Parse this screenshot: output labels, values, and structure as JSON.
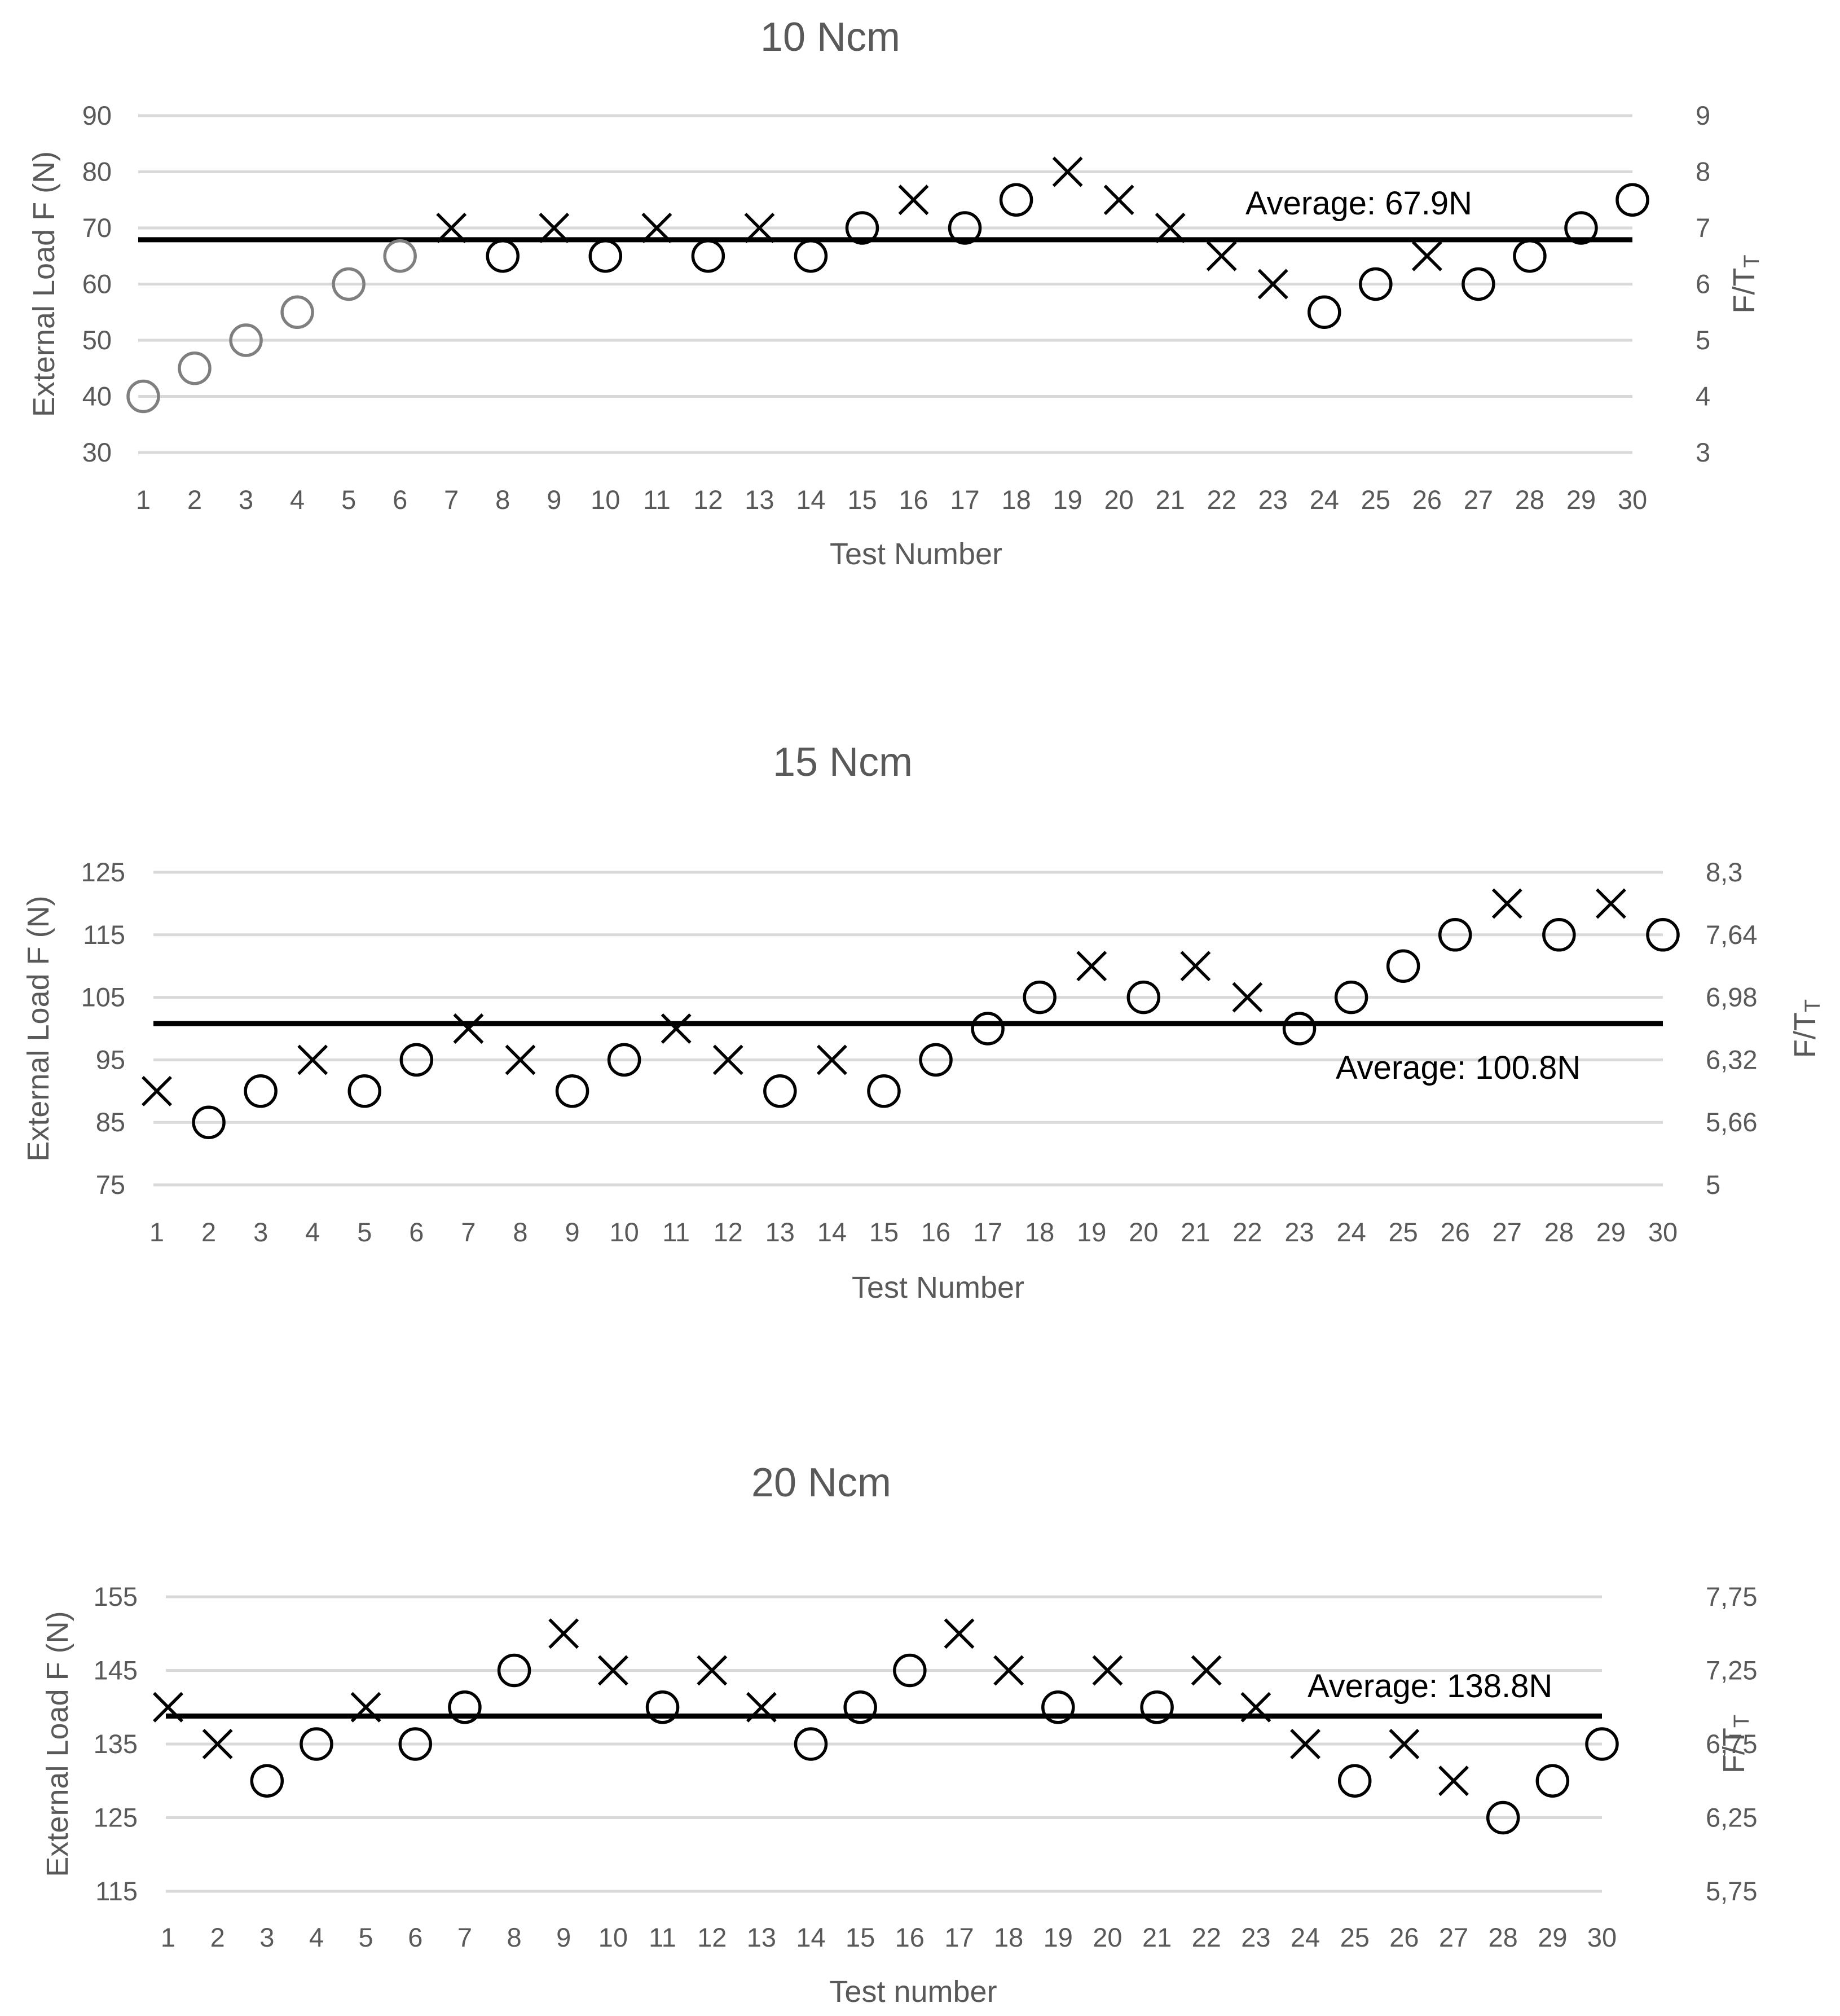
{
  "colors": {
    "marker": "#000000",
    "grey_marker": "#7f7f7f",
    "grid": "#d9d9d9",
    "text": "#595959"
  },
  "chart_data": [
    {
      "type": "scatter",
      "title": "10 Ncm",
      "xlabel": "Test Number",
      "ylabel": "External Load F (N)",
      "y2label": "F/Tt",
      "x": [
        1,
        2,
        3,
        4,
        5,
        6,
        7,
        8,
        9,
        10,
        11,
        12,
        13,
        14,
        15,
        16,
        17,
        18,
        19,
        20,
        21,
        22,
        23,
        24,
        25,
        26,
        27,
        28,
        29,
        30
      ],
      "values": [
        40,
        45,
        50,
        55,
        60,
        65,
        70,
        65,
        70,
        65,
        70,
        65,
        70,
        65,
        70,
        75,
        70,
        75,
        80,
        75,
        70,
        65,
        60,
        55,
        60,
        65,
        60,
        65,
        70,
        75
      ],
      "markers": [
        "o",
        "o",
        "o",
        "o",
        "o",
        "o",
        "x",
        "o",
        "x",
        "o",
        "x",
        "o",
        "x",
        "o",
        "o",
        "x",
        "o",
        "o",
        "x",
        "x",
        "x",
        "x",
        "x",
        "o",
        "o",
        "x",
        "o",
        "o",
        "o",
        "o"
      ],
      "grey_until": 6,
      "ylim": [
        30,
        90
      ],
      "yticks": [
        30,
        40,
        50,
        60,
        70,
        80,
        90
      ],
      "y2ticks": [
        "3",
        "4",
        "5",
        "6",
        "7",
        "8",
        "9"
      ],
      "average": 67.9,
      "average_label": "Average: 67.9N",
      "legend": "none",
      "grid": true
    },
    {
      "type": "scatter",
      "title": "15 Ncm",
      "xlabel": "Test Number",
      "ylabel": "External Load F (N)",
      "y2label": "F/Tt",
      "x": [
        1,
        2,
        3,
        4,
        5,
        6,
        7,
        8,
        9,
        10,
        11,
        12,
        13,
        14,
        15,
        16,
        17,
        18,
        19,
        20,
        21,
        22,
        23,
        24,
        25,
        26,
        27,
        28,
        29,
        30
      ],
      "values": [
        90,
        85,
        90,
        95,
        90,
        95,
        100,
        95,
        90,
        95,
        100,
        95,
        90,
        95,
        90,
        95,
        100,
        105,
        110,
        105,
        110,
        105,
        100,
        105,
        110,
        115,
        120,
        115,
        120,
        115
      ],
      "markers": [
        "x",
        "o",
        "o",
        "x",
        "o",
        "o",
        "x",
        "x",
        "o",
        "o",
        "x",
        "x",
        "o",
        "x",
        "o",
        "o",
        "o",
        "o",
        "x",
        "o",
        "x",
        "x",
        "o",
        "o",
        "o",
        "o",
        "x",
        "o",
        "x",
        "o"
      ],
      "grey_until": 0,
      "ylim": [
        75,
        125
      ],
      "yticks": [
        75,
        85,
        95,
        105,
        115,
        125
      ],
      "y2ticks": [
        "5",
        "5,66",
        "6,32",
        "6,98",
        "7,64",
        "8,3"
      ],
      "average": 100.8,
      "average_label": "Average: 100.8N",
      "legend": "none",
      "grid": true
    },
    {
      "type": "scatter",
      "title": "20 Ncm",
      "xlabel": "Test number",
      "ylabel": "External Load F (N)",
      "y2label": "F/Tt",
      "x": [
        1,
        2,
        3,
        4,
        5,
        6,
        7,
        8,
        9,
        10,
        11,
        12,
        13,
        14,
        15,
        16,
        17,
        18,
        19,
        20,
        21,
        22,
        23,
        24,
        25,
        26,
        27,
        28,
        29,
        30
      ],
      "values": [
        140,
        135,
        130,
        135,
        140,
        135,
        140,
        145,
        150,
        145,
        140,
        145,
        140,
        135,
        140,
        145,
        150,
        145,
        140,
        145,
        140,
        145,
        140,
        135,
        130,
        135,
        130,
        125,
        130,
        135
      ],
      "markers": [
        "x",
        "x",
        "o",
        "o",
        "x",
        "o",
        "o",
        "o",
        "x",
        "x",
        "o",
        "x",
        "x",
        "o",
        "o",
        "o",
        "x",
        "x",
        "o",
        "x",
        "o",
        "x",
        "x",
        "x",
        "o",
        "x",
        "x",
        "o",
        "o",
        "o"
      ],
      "grey_until": 0,
      "ylim": [
        115,
        155
      ],
      "yticks": [
        115,
        125,
        135,
        145,
        155
      ],
      "y2ticks": [
        "5,75",
        "6,25",
        "6,75",
        "7,25",
        "7,75"
      ],
      "average": 138.8,
      "average_label": "Average: 138.8N",
      "legend": "none",
      "grid": true
    }
  ]
}
